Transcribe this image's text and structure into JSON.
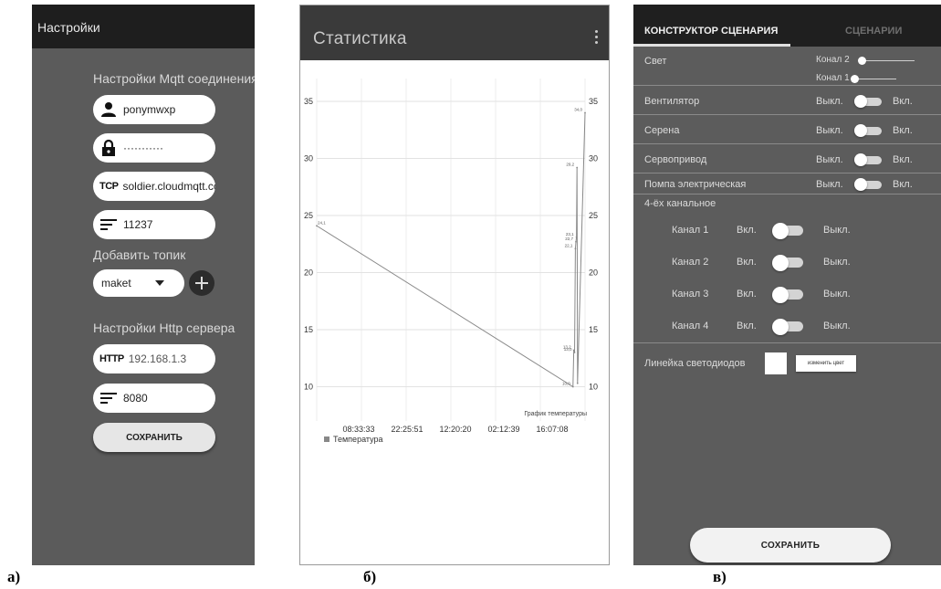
{
  "captions": {
    "a": "а)",
    "b": "б)",
    "c": "в)"
  },
  "settings": {
    "title": "Настройки",
    "mqtt_section": "Настройки Mqtt соединения",
    "username": "ponymwxp",
    "password": "···········",
    "server_tag": "TCP",
    "server": "soldier.cloudmqtt.co",
    "port": "11237",
    "topic_section": "Добавить топик",
    "topic_selected": "maket",
    "http_section": "Настройки Http сервера",
    "http_tag": "HTTP",
    "http_host": "192.168.1.3",
    "http_port": "8080",
    "save_label": "СОХРАНИТЬ",
    "icons": [
      "user-icon",
      "lock-icon",
      "lines-icon",
      "plus-icon"
    ]
  },
  "statistics": {
    "title": "Статистика",
    "icons": [
      "more-vert-icon"
    ]
  },
  "chart_data": {
    "type": "line",
    "title": "График температуры",
    "legend": {
      "label": "Температура",
      "color": "#888888",
      "position": "bottom-left"
    },
    "ylim": [
      7,
      37
    ],
    "yticks": [
      10,
      15,
      20,
      25,
      30,
      35
    ],
    "xtick_labels": [
      "08:33:33",
      "22:25:51",
      "12:20:20",
      "02:12:39",
      "16:07:08"
    ],
    "xlim": [
      0,
      1
    ],
    "grid": true,
    "series": [
      {
        "name": "Температура",
        "color": "#888888",
        "points": [
          {
            "x": 0.0,
            "y": 24.1,
            "label": "24,1"
          },
          {
            "x": 0.955,
            "y": 10.0,
            "label": "10,0"
          },
          {
            "x": 0.958,
            "y": 13.2,
            "label": "13,2"
          },
          {
            "x": 0.961,
            "y": 13.0,
            "label": "13,0"
          },
          {
            "x": 0.964,
            "y": 22.1,
            "label": "22,1"
          },
          {
            "x": 0.966,
            "y": 22.7,
            "label": "22,7"
          },
          {
            "x": 0.968,
            "y": 23.1,
            "label": "23,1"
          },
          {
            "x": 0.97,
            "y": 29.2,
            "label": "29,2"
          },
          {
            "x": 0.972,
            "y": 10.3,
            "label": ""
          },
          {
            "x": 1.0,
            "y": 34.0,
            "label": "34,0"
          }
        ]
      }
    ]
  },
  "scenario": {
    "tabs": [
      {
        "label": "КОНСТРУКТОР СЦЕНАРИЯ",
        "active": true
      },
      {
        "label": "СЦЕНАРИИ",
        "active": false
      }
    ],
    "light": {
      "label": "Свет",
      "channel2": "Конал 2",
      "channel1": "Конал 1"
    },
    "devices": [
      {
        "label": "Вентилятор",
        "off": "Выкл.",
        "on": "Вкл."
      },
      {
        "label": "Серена",
        "off": "Выкл.",
        "on": "Вкл."
      },
      {
        "label": "Сервопривод",
        "off": "Выкл.",
        "on": "Вкл."
      },
      {
        "label": "Помпа электрическая",
        "off": "Выкл.",
        "on": "Вкл."
      }
    ],
    "relay_label": "4-ёх канальное",
    "channels": [
      {
        "label": "Канал 1",
        "on": "Вкл.",
        "off": "Выкл."
      },
      {
        "label": "Канал 2",
        "on": "Вкл.",
        "off": "Выкл."
      },
      {
        "label": "Канал 3",
        "on": "Вкл.",
        "off": "Выкл."
      },
      {
        "label": "Канал 4",
        "on": "Вкл.",
        "off": "Выкл."
      }
    ],
    "led_label": "Линейка светодиодов",
    "color_button": "изменить цвет",
    "save_label": "СОХРАНИТЬ"
  }
}
